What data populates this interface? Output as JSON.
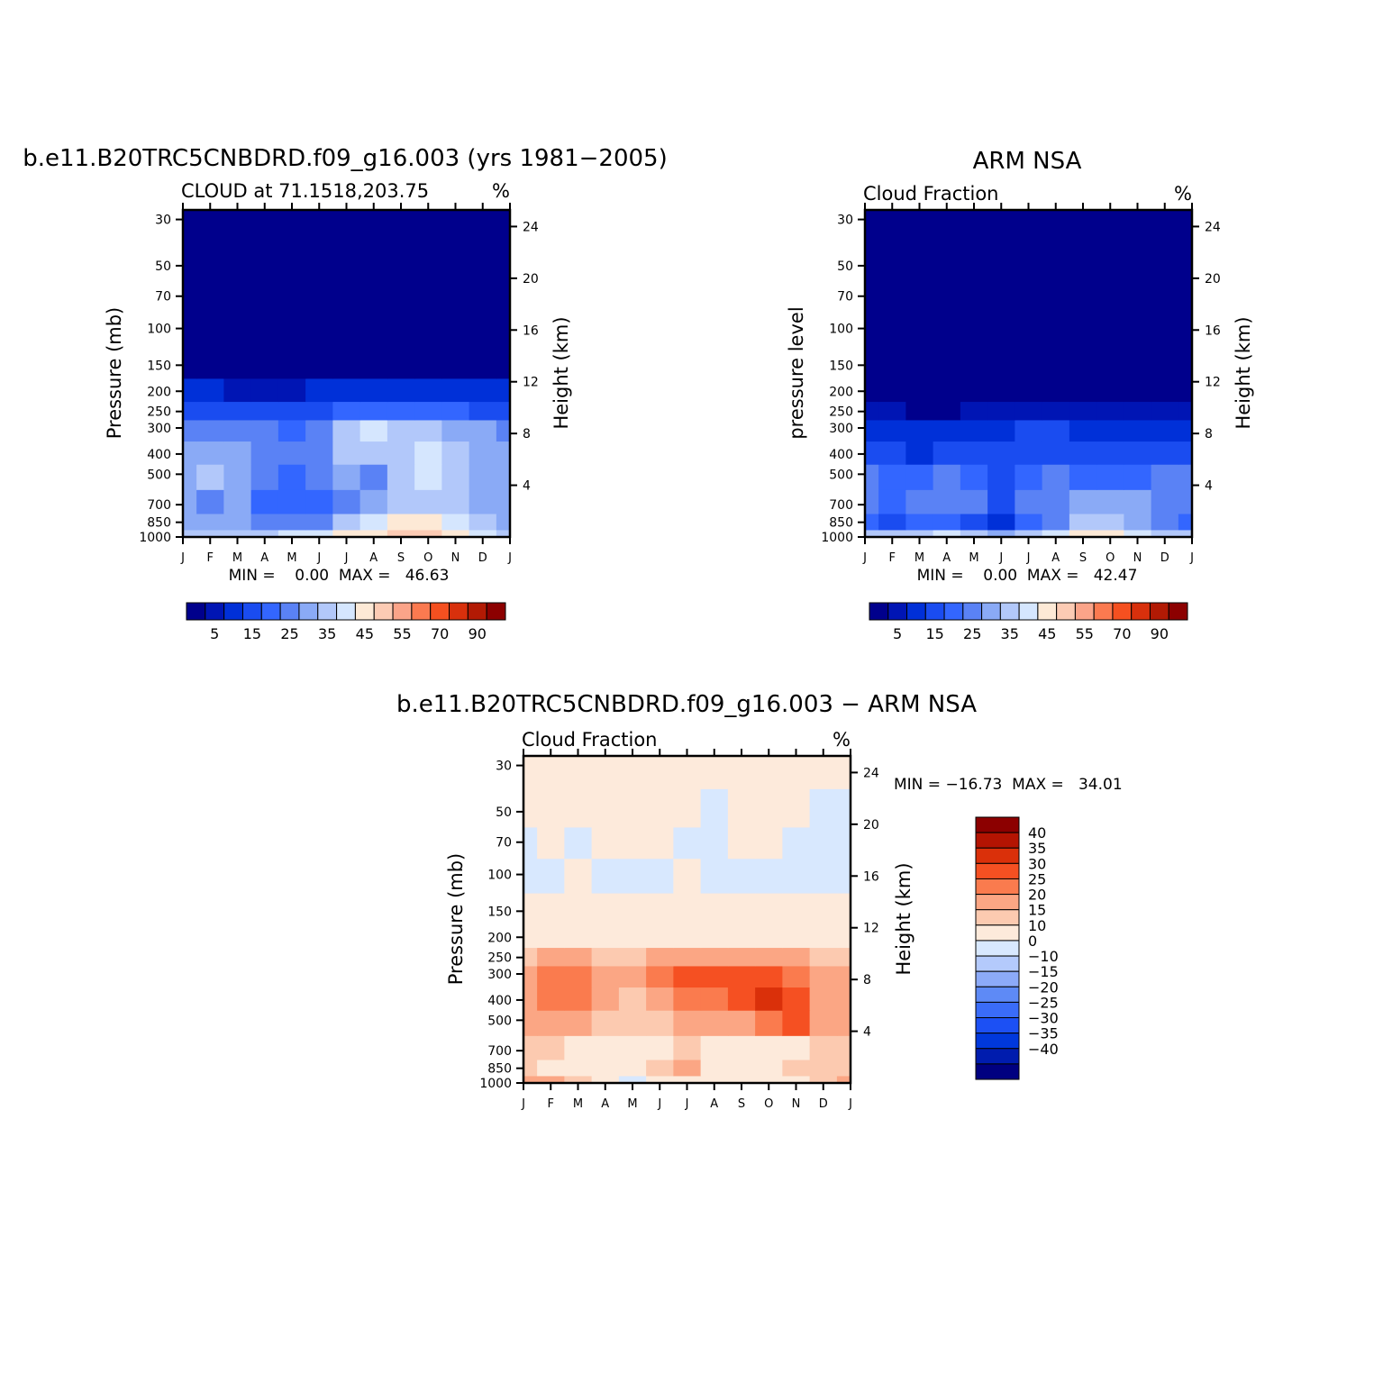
{
  "months": [
    "J",
    "F",
    "M",
    "A",
    "M",
    "J",
    "J",
    "A",
    "S",
    "O",
    "N",
    "D",
    "J"
  ],
  "pressure_ticks": [
    30,
    50,
    70,
    100,
    150,
    200,
    250,
    300,
    400,
    500,
    700,
    850,
    1000
  ],
  "height_ticks": [
    24,
    20,
    16,
    12,
    8,
    4
  ],
  "colors": {
    "seq": [
      "#00008c",
      "#0015b4",
      "#0030d8",
      "#1a4cf0",
      "#3366ff",
      "#5a82f5",
      "#8aaaf6",
      "#b2c8fa",
      "#d5e6fe",
      "#fde9d6",
      "#fccbb4",
      "#fba489",
      "#fb7a50",
      "#f55020",
      "#d8300c",
      "#b21a04",
      "#8c0000"
    ],
    "diff": [
      "#000080",
      "#001cae",
      "#0038dc",
      "#1c50f4",
      "#3a6cf8",
      "#5e8af6",
      "#8caaf8",
      "#b4cafc",
      "#d8e8fe",
      "#fdeadb",
      "#fccab0",
      "#fba684",
      "#fa7b4e",
      "#f55022",
      "#da300a",
      "#b41402",
      "#8c0000"
    ]
  },
  "charts": [
    {
      "chart_data": {
        "type": "heatmap",
        "title": "b.e11.B20TRC5CNBDRD.f09_g16.003 (yrs 1981−2005)",
        "subtitle_left": "CLOUD at 71.1518,203.75",
        "units": "%",
        "xlabel": "",
        "ylabel": "Pressure (mb)",
        "y2label": "Height (km)",
        "min_max": "MIN =    0.00  MAX =   46.63",
        "y_levels": [
          1000,
          850,
          700,
          500,
          400,
          300,
          250,
          200,
          150,
          100,
          70,
          50,
          30
        ],
        "values": [
          [
            30,
            32,
            34,
            34,
            36,
            38,
            40,
            43,
            46,
            45,
            42,
            36,
            30
          ],
          [
            28,
            26,
            25,
            22,
            21,
            23,
            30,
            38,
            42,
            40,
            36,
            32,
            28
          ],
          [
            26,
            24,
            25,
            18,
            17,
            18,
            20,
            28,
            33,
            34,
            30,
            28,
            26
          ],
          [
            28,
            30,
            28,
            22,
            19,
            20,
            26,
            24,
            30,
            36,
            32,
            29,
            28
          ],
          [
            29,
            29,
            27,
            22,
            20,
            21,
            30,
            33,
            34,
            38,
            31,
            28,
            29
          ],
          [
            24,
            24,
            23,
            20,
            18,
            24,
            32,
            36,
            33,
            34,
            28,
            25,
            24
          ],
          [
            14,
            14,
            13,
            11,
            10,
            13,
            18,
            18,
            18,
            17,
            15,
            14,
            14
          ],
          [
            5,
            5,
            4,
            4,
            4,
            5,
            6,
            7,
            7,
            6,
            5,
            5,
            5
          ],
          [
            2,
            2,
            2,
            2,
            2,
            2,
            2,
            2,
            2,
            2,
            2,
            2,
            2
          ],
          [
            1,
            1,
            1,
            1,
            1,
            1,
            1,
            1,
            1,
            1,
            1,
            1,
            1
          ],
          [
            1,
            1,
            1,
            1,
            1,
            1,
            1,
            1,
            1,
            1,
            1,
            1,
            1
          ],
          [
            1,
            1,
            1,
            1,
            1,
            1,
            1,
            1,
            1,
            1,
            1,
            1,
            1
          ],
          [
            0,
            0,
            0,
            0,
            0,
            0,
            0,
            0,
            0,
            0,
            0,
            0,
            0
          ]
        ],
        "colorbar_labels": [
          "5",
          "15",
          "25",
          "35",
          "45",
          "55",
          "70",
          "90"
        ],
        "levels": [
          2.5,
          5,
          10,
          15,
          20,
          25,
          30,
          35,
          40,
          45,
          50,
          55,
          60,
          70,
          80,
          90
        ]
      }
    },
    {
      "chart_data": {
        "type": "heatmap",
        "title": "ARM NSA",
        "subtitle_left": "Cloud Fraction",
        "units": "%",
        "xlabel": "",
        "ylabel": "pressure level",
        "y2label": "Height (km)",
        "min_max": "MIN =    0.00  MAX =   42.47",
        "y_levels": [
          1000,
          850,
          700,
          500,
          400,
          300,
          250,
          200,
          150,
          100,
          70,
          50,
          30
        ],
        "values": [
          [
            30,
            32,
            34,
            36,
            32,
            28,
            30,
            36,
            40,
            42,
            38,
            34,
            30
          ],
          [
            18,
            14,
            16,
            18,
            14,
            9,
            16,
            24,
            30,
            34,
            28,
            22,
            18
          ],
          [
            20,
            18,
            21,
            23,
            20,
            13,
            20,
            24,
            25,
            27,
            25,
            22,
            20
          ],
          [
            20,
            18,
            18,
            20,
            16,
            12,
            18,
            21,
            18,
            16,
            18,
            20,
            20
          ],
          [
            14,
            13,
            9,
            12,
            14,
            11,
            12,
            14,
            12,
            11,
            12,
            13,
            14
          ],
          [
            8,
            7,
            5,
            6,
            8,
            9,
            10,
            11,
            8,
            7,
            8,
            7,
            8
          ],
          [
            3,
            3,
            2,
            2,
            3,
            3,
            4,
            4,
            3,
            3,
            3,
            3,
            3
          ],
          [
            1,
            1,
            1,
            1,
            1,
            1,
            2,
            2,
            1,
            1,
            1,
            1,
            1
          ],
          [
            1,
            1,
            1,
            1,
            1,
            1,
            1,
            1,
            1,
            1,
            1,
            1,
            1
          ],
          [
            0,
            0,
            0,
            0,
            0,
            0,
            0,
            0,
            0,
            0,
            0,
            0,
            0
          ],
          [
            0,
            0,
            0,
            0,
            0,
            0,
            0,
            0,
            0,
            0,
            0,
            0,
            0
          ],
          [
            0,
            0,
            0,
            0,
            0,
            0,
            0,
            0,
            0,
            0,
            0,
            0,
            0
          ],
          [
            0,
            0,
            0,
            0,
            0,
            0,
            0,
            0,
            0,
            0,
            0,
            0,
            0
          ]
        ],
        "colorbar_labels": [
          "5",
          "15",
          "25",
          "35",
          "45",
          "55",
          "70",
          "90"
        ],
        "levels": [
          2.5,
          5,
          10,
          15,
          20,
          25,
          30,
          35,
          40,
          45,
          50,
          55,
          60,
          70,
          80,
          90
        ]
      }
    },
    {
      "chart_data": {
        "type": "heatmap",
        "title": "b.e11.B20TRC5CNBDRD.f09_g16.003 − ARM NSA",
        "subtitle_left": "Cloud Fraction",
        "units": "%",
        "xlabel": "",
        "ylabel": "Pressure (mb)",
        "y2label": "Height (km)",
        "min_max": "MIN = −16.73  MAX =   34.01",
        "y_levels": [
          1000,
          850,
          700,
          500,
          400,
          300,
          250,
          200,
          150,
          100,
          70,
          50,
          30
        ],
        "values": [
          [
            12,
            14,
            6,
            2,
            -4,
            2,
            3,
            1,
            4,
            3,
            3,
            8,
            12
          ],
          [
            6,
            4,
            3,
            2,
            1,
            6,
            14,
            4,
            3,
            2,
            6,
            6,
            6
          ],
          [
            6,
            5,
            4,
            2,
            2,
            4,
            6,
            3,
            4,
            4,
            4,
            6,
            6
          ],
          [
            10,
            11,
            10,
            8,
            6,
            9,
            14,
            12,
            14,
            16,
            22,
            10,
            10
          ],
          [
            14,
            16,
            15,
            12,
            8,
            14,
            18,
            18,
            22,
            26,
            22,
            14,
            14
          ],
          [
            14,
            16,
            15,
            10,
            12,
            19,
            20,
            22,
            22,
            24,
            18,
            14,
            14
          ],
          [
            6,
            10,
            10,
            8,
            8,
            10,
            12,
            12,
            14,
            14,
            12,
            8,
            6
          ],
          [
            2,
            2,
            2,
            2,
            2,
            3,
            3,
            3,
            3,
            2,
            2,
            2,
            2
          ],
          [
            1,
            1,
            1,
            1,
            1,
            1,
            1,
            1,
            1,
            1,
            1,
            1,
            1
          ],
          [
            -1,
            -1,
            1,
            -1,
            -1,
            -1,
            1,
            -1,
            -1,
            -1,
            -1,
            -1,
            -1
          ],
          [
            -1,
            1,
            -1,
            1,
            1,
            1,
            -1,
            -1,
            1,
            1,
            -1,
            -1,
            -1
          ],
          [
            1,
            1,
            1,
            1,
            1,
            1,
            1,
            -1,
            1,
            1,
            1,
            -1,
            -1
          ],
          [
            1,
            1,
            1,
            1,
            1,
            1,
            1,
            1,
            1,
            1,
            1,
            1,
            1
          ]
        ],
        "colorbar_labels": [
          "40",
          "35",
          "30",
          "25",
          "20",
          "15",
          "10",
          "0",
          "−10",
          "−15",
          "−20",
          "−25",
          "−30",
          "−35",
          "−40"
        ],
        "levels": [
          -40,
          -35,
          -30,
          -25,
          -20,
          -15,
          -10,
          -5,
          0,
          5,
          10,
          15,
          20,
          25,
          30,
          35,
          40
        ]
      }
    }
  ]
}
